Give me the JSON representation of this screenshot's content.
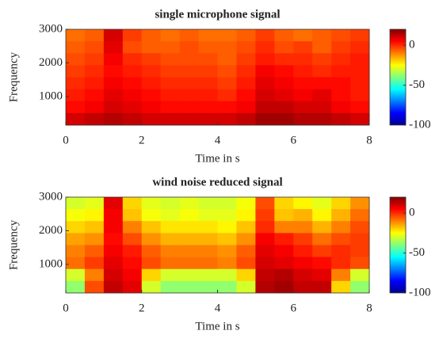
{
  "chart_data": [
    {
      "type": "heatmap",
      "title": "single microphone signal",
      "xlabel": "Time in s",
      "ylabel": "Frequency",
      "xlim": [
        0,
        8
      ],
      "xticks": [
        0,
        2,
        4,
        6,
        8
      ],
      "ylim": [
        150,
        3000
      ],
      "yticks": [
        1000,
        2000,
        3000
      ],
      "clim": [
        -100,
        20
      ],
      "cticks": [
        -100,
        -50,
        0
      ],
      "colormap": "jet",
      "z": [
        [
          -8,
          -6,
          10,
          -2,
          -6,
          -8,
          -6,
          -8,
          -8,
          -6,
          -2,
          -6,
          -8,
          -6,
          -4,
          -2
        ],
        [
          -6,
          -4,
          8,
          -4,
          -6,
          -6,
          -4,
          -6,
          -6,
          -4,
          0,
          -4,
          -2,
          -6,
          -2,
          0
        ],
        [
          -4,
          -2,
          6,
          0,
          -2,
          -4,
          -4,
          -4,
          -6,
          -2,
          2,
          0,
          0,
          -2,
          0,
          2
        ],
        [
          -2,
          0,
          4,
          2,
          0,
          -2,
          -2,
          -2,
          -4,
          0,
          6,
          4,
          2,
          0,
          2,
          2
        ],
        [
          0,
          2,
          6,
          4,
          2,
          0,
          0,
          0,
          -2,
          2,
          8,
          6,
          4,
          4,
          4,
          2
        ],
        [
          2,
          4,
          8,
          6,
          4,
          2,
          2,
          2,
          0,
          4,
          10,
          8,
          6,
          8,
          4,
          2
        ],
        [
          4,
          6,
          10,
          8,
          6,
          4,
          4,
          4,
          4,
          6,
          12,
          12,
          10,
          10,
          6,
          4
        ],
        [
          10,
          12,
          14,
          12,
          10,
          10,
          10,
          10,
          10,
          12,
          16,
          16,
          14,
          14,
          12,
          10
        ]
      ]
    },
    {
      "type": "heatmap",
      "title": "wind noise reduced signal",
      "xlabel": "Time in s",
      "ylabel": "Frequency",
      "xlim": [
        0,
        8
      ],
      "xticks": [
        0,
        2,
        4,
        6,
        8
      ],
      "ylim": [
        150,
        3000
      ],
      "yticks": [
        1000,
        2000,
        3000
      ],
      "clim": [
        -100,
        20
      ],
      "cticks": [
        -100,
        -50,
        0
      ],
      "colormap": "jet",
      "z": [
        [
          -30,
          -28,
          8,
          -20,
          -28,
          -30,
          -28,
          -30,
          -30,
          -26,
          -4,
          -20,
          -24,
          -28,
          -20,
          -12
        ],
        [
          -26,
          -24,
          6,
          -18,
          -26,
          -28,
          -26,
          -28,
          -28,
          -24,
          -2,
          -18,
          -16,
          -24,
          -16,
          -8
        ],
        [
          -20,
          -18,
          6,
          -10,
          -18,
          -22,
          -22,
          -22,
          -24,
          -18,
          0,
          -10,
          -10,
          -16,
          -10,
          -4
        ],
        [
          -14,
          -12,
          4,
          -4,
          -12,
          -16,
          -16,
          -16,
          -18,
          -12,
          6,
          2,
          -2,
          -8,
          -4,
          -2
        ],
        [
          -10,
          -6,
          6,
          2,
          -6,
          -10,
          -10,
          -10,
          -12,
          -6,
          8,
          6,
          2,
          -2,
          0,
          -2
        ],
        [
          -8,
          -2,
          8,
          4,
          -4,
          -8,
          -8,
          -8,
          -10,
          -4,
          10,
          8,
          6,
          4,
          0,
          -4
        ],
        [
          -30,
          -10,
          10,
          6,
          -20,
          -30,
          -30,
          -30,
          -30,
          -20,
          12,
          14,
          10,
          8,
          -10,
          -30
        ],
        [
          -38,
          -4,
          12,
          8,
          -30,
          -38,
          -38,
          -38,
          -38,
          -30,
          14,
          16,
          12,
          12,
          -20,
          -38
        ]
      ]
    }
  ]
}
